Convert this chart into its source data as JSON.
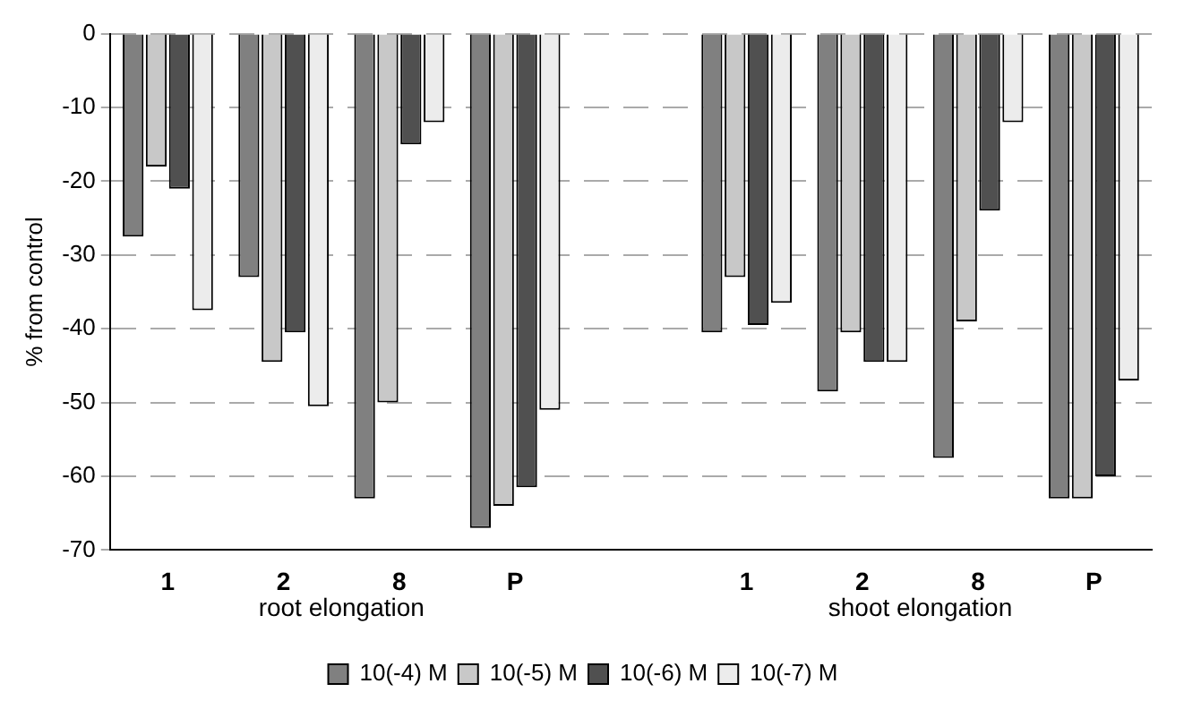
{
  "chart_data": {
    "type": "bar",
    "ylabel": "% from control",
    "categories": [
      "1",
      "2",
      "8",
      "P",
      null,
      "1",
      "2",
      "8",
      "P"
    ],
    "series": [
      {
        "name": "10(-4) M",
        "color": "#808080",
        "values": [
          -27.5,
          -33,
          -63,
          -67,
          null,
          -40.5,
          -48.5,
          -57.5,
          -63
        ]
      },
      {
        "name": "10(-5) M",
        "color": "#c8c8c8",
        "values": [
          -18,
          -44.5,
          -50,
          -64,
          null,
          -33,
          -40.5,
          -39,
          -63
        ]
      },
      {
        "name": "10(-6) M",
        "color": "#505050",
        "values": [
          -21,
          -40.5,
          -15,
          -61.5,
          null,
          -39.5,
          -44.5,
          -24,
          -60
        ]
      },
      {
        "name": "10(-7) M",
        "color": "#ececec",
        "values": [
          -37.5,
          -50.5,
          -12,
          -51,
          null,
          -36.5,
          -44.5,
          -12,
          -47
        ]
      }
    ],
    "ylim": [
      -70,
      0
    ],
    "yticks": [
      -70,
      -60,
      -50,
      -40,
      -30,
      -20,
      -10,
      0
    ],
    "grid": "y",
    "legend": "bottom",
    "annotations": [
      "root elongation",
      "shoot elongation"
    ]
  }
}
